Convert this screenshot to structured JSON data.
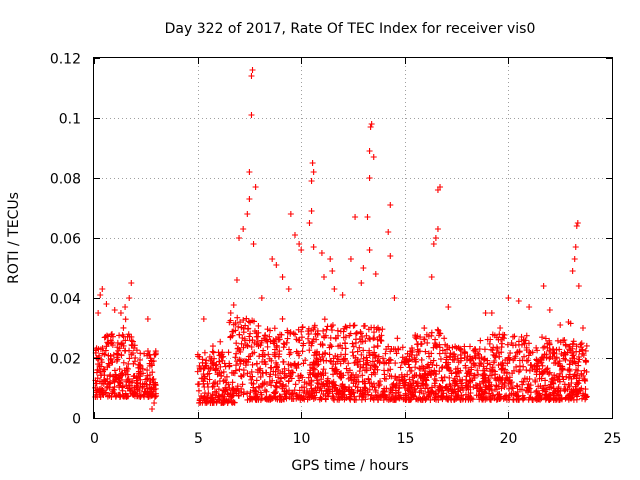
{
  "chart_data": {
    "type": "scatter",
    "title": "Day 322 of 2017, Rate Of TEC Index for receiver vis0",
    "xlabel": "GPS time / hours",
    "ylabel": "ROTI / TECUs",
    "xlim": [
      0,
      25
    ],
    "ylim": [
      0,
      0.12
    ],
    "xticks": [
      0,
      5,
      10,
      15,
      20,
      25
    ],
    "xtick_labels": [
      "0",
      "5",
      "10",
      "15",
      "20",
      "25"
    ],
    "yticks": [
      0,
      0.02,
      0.04,
      0.06,
      0.08,
      0.1,
      0.12
    ],
    "ytick_labels": [
      "0",
      "0.02",
      "0.04",
      "0.06",
      "0.08",
      "0.1",
      "0.12"
    ],
    "grid": true,
    "marker": "+",
    "color": "#ff0000",
    "data_gap_hours": [
      3.0,
      5.0
    ],
    "series": [
      {
        "name": "ROTI",
        "points": [
          [
            0.2,
            0.035
          ],
          [
            0.3,
            0.041
          ],
          [
            0.4,
            0.043
          ],
          [
            0.6,
            0.038
          ],
          [
            1.0,
            0.036
          ],
          [
            1.3,
            0.035
          ],
          [
            1.5,
            0.037
          ],
          [
            1.7,
            0.04
          ],
          [
            1.8,
            0.045
          ],
          [
            2.6,
            0.033
          ],
          [
            2.8,
            0.003
          ],
          [
            2.9,
            0.005
          ],
          [
            5.3,
            0.033
          ],
          [
            6.6,
            0.035
          ],
          [
            6.9,
            0.046
          ],
          [
            7.0,
            0.06
          ],
          [
            7.2,
            0.063
          ],
          [
            7.4,
            0.068
          ],
          [
            7.5,
            0.073
          ],
          [
            7.5,
            0.082
          ],
          [
            7.6,
            0.101
          ],
          [
            7.6,
            0.114
          ],
          [
            7.65,
            0.116
          ],
          [
            7.7,
            0.058
          ],
          [
            7.8,
            0.077
          ],
          [
            8.1,
            0.04
          ],
          [
            8.6,
            0.053
          ],
          [
            8.8,
            0.051
          ],
          [
            9.1,
            0.047
          ],
          [
            9.4,
            0.043
          ],
          [
            9.5,
            0.068
          ],
          [
            9.7,
            0.061
          ],
          [
            9.9,
            0.058
          ],
          [
            10.0,
            0.056
          ],
          [
            10.4,
            0.065
          ],
          [
            10.5,
            0.069
          ],
          [
            10.5,
            0.079
          ],
          [
            10.55,
            0.085
          ],
          [
            10.6,
            0.082
          ],
          [
            10.6,
            0.057
          ],
          [
            11.0,
            0.055
          ],
          [
            11.1,
            0.047
          ],
          [
            11.4,
            0.053
          ],
          [
            11.5,
            0.049
          ],
          [
            11.6,
            0.043
          ],
          [
            12.0,
            0.041
          ],
          [
            12.4,
            0.053
          ],
          [
            12.6,
            0.067
          ],
          [
            12.9,
            0.045
          ],
          [
            13.0,
            0.05
          ],
          [
            13.2,
            0.067
          ],
          [
            13.3,
            0.08
          ],
          [
            13.3,
            0.089
          ],
          [
            13.35,
            0.097
          ],
          [
            13.4,
            0.098
          ],
          [
            13.5,
            0.087
          ],
          [
            13.3,
            0.056
          ],
          [
            13.6,
            0.048
          ],
          [
            14.2,
            0.062
          ],
          [
            14.3,
            0.071
          ],
          [
            14.3,
            0.054
          ],
          [
            14.5,
            0.04
          ],
          [
            16.3,
            0.047
          ],
          [
            16.4,
            0.058
          ],
          [
            16.5,
            0.06
          ],
          [
            16.6,
            0.063
          ],
          [
            16.6,
            0.076
          ],
          [
            16.7,
            0.077
          ],
          [
            17.1,
            0.037
          ],
          [
            18.9,
            0.035
          ],
          [
            19.2,
            0.035
          ],
          [
            19.6,
            0.03
          ],
          [
            20.0,
            0.04
          ],
          [
            20.5,
            0.039
          ],
          [
            21.0,
            0.037
          ],
          [
            21.7,
            0.044
          ],
          [
            22.0,
            0.036
          ],
          [
            22.5,
            0.031
          ],
          [
            22.7,
            0.026
          ],
          [
            22.9,
            0.032
          ],
          [
            23.1,
            0.049
          ],
          [
            23.2,
            0.053
          ],
          [
            23.25,
            0.057
          ],
          [
            23.3,
            0.064
          ],
          [
            23.35,
            0.065
          ],
          [
            23.4,
            0.044
          ],
          [
            23.6,
            0.03
          ]
        ]
      }
    ]
  }
}
